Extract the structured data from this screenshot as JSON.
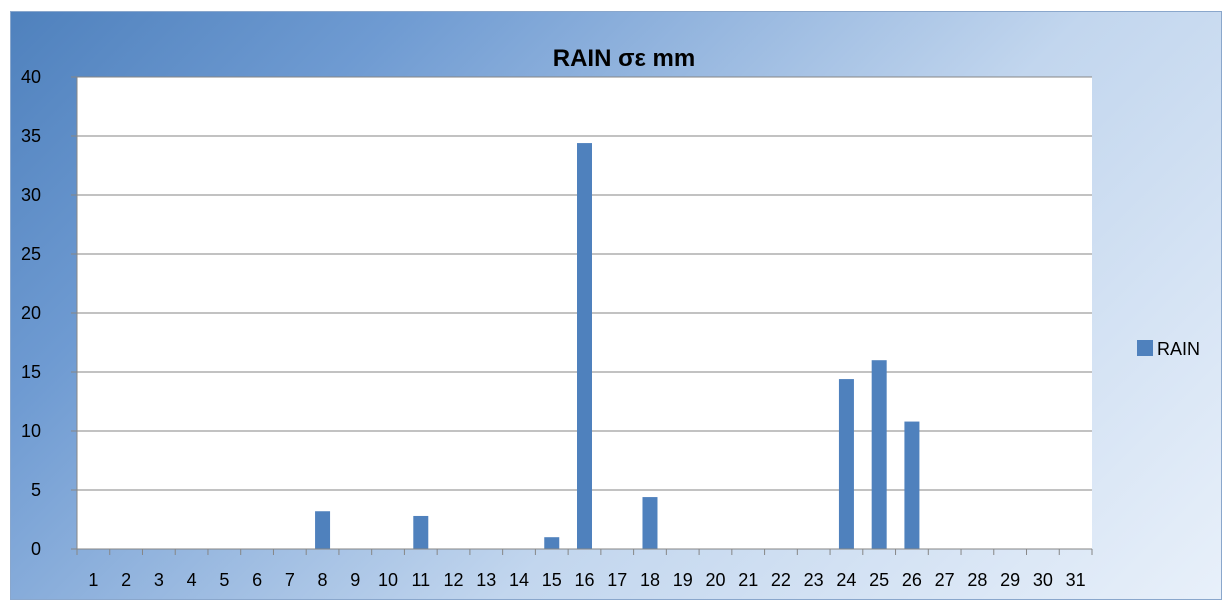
{
  "chart_data": {
    "type": "bar",
    "title": "RAIN σε mm",
    "xlabel": "",
    "ylabel": "",
    "ylim": [
      0,
      40
    ],
    "yticks": [
      0,
      5,
      10,
      15,
      20,
      25,
      30,
      35,
      40
    ],
    "categories": [
      "1",
      "2",
      "3",
      "4",
      "5",
      "6",
      "7",
      "8",
      "9",
      "10",
      "11",
      "12",
      "13",
      "14",
      "15",
      "16",
      "17",
      "18",
      "19",
      "20",
      "21",
      "22",
      "23",
      "24",
      "25",
      "26",
      "27",
      "28",
      "29",
      "30",
      "31"
    ],
    "series": [
      {
        "name": "RAIN",
        "color": "#4f81bd",
        "values": [
          0,
          0,
          0,
          0,
          0,
          0,
          0,
          3.2,
          0,
          0,
          2.8,
          0,
          0,
          0,
          1,
          34.4,
          0,
          4.4,
          0,
          0,
          0,
          0,
          0,
          14.4,
          16,
          10.8,
          0,
          0,
          0,
          0,
          0
        ]
      }
    ],
    "grid": true,
    "legend": "right"
  }
}
